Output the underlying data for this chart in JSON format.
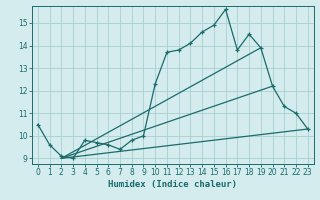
{
  "xlabel": "Humidex (Indice chaleur)",
  "bg_color": "#d4ecee",
  "grid_color": "#aacfcf",
  "line_color": "#1a6b6b",
  "xlim_min": -0.5,
  "xlim_max": 23.5,
  "ylim_min": 8.75,
  "ylim_max": 15.75,
  "yticks": [
    9,
    10,
    11,
    12,
    13,
    14,
    15
  ],
  "xticks": [
    0,
    1,
    2,
    3,
    4,
    5,
    6,
    7,
    8,
    9,
    10,
    11,
    12,
    13,
    14,
    15,
    16,
    17,
    18,
    19,
    20,
    21,
    22,
    23
  ],
  "series1_x": [
    0,
    1,
    2,
    3,
    4,
    5,
    6,
    7,
    8,
    9,
    10,
    11,
    12,
    13,
    14,
    15,
    16,
    17,
    18,
    19,
    20,
    21,
    22,
    23
  ],
  "series1_y": [
    10.5,
    9.6,
    9.1,
    9.0,
    9.8,
    9.7,
    9.6,
    9.4,
    9.8,
    10.0,
    12.3,
    13.7,
    13.8,
    14.1,
    14.6,
    14.9,
    15.6,
    13.8,
    14.5,
    13.9,
    12.2,
    11.3,
    11.0,
    10.3
  ],
  "line2_x": [
    2,
    19
  ],
  "line2_y": [
    9.0,
    13.9
  ],
  "line3_x": [
    2,
    20
  ],
  "line3_y": [
    9.0,
    12.2
  ],
  "line4_x": [
    2,
    23
  ],
  "line4_y": [
    9.0,
    10.3
  ],
  "tick_fontsize": 5.5,
  "xlabel_fontsize": 6.5
}
